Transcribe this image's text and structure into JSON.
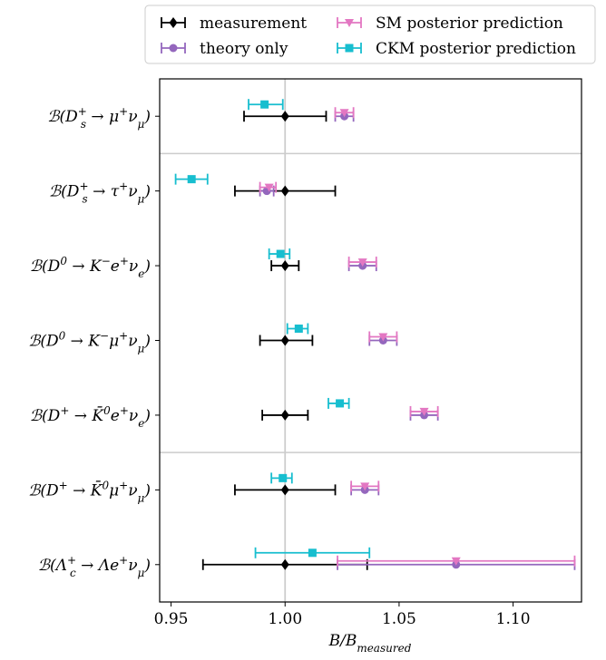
{
  "colors": {
    "measurement": "#000000",
    "theory": "#9467bd",
    "sm": "#e377c2",
    "ckm": "#17becf",
    "separator": "#cccccc",
    "refline": "#cccccc"
  },
  "legend": {
    "items": [
      {
        "key": "measurement",
        "label": "measurement",
        "marker": "diamond"
      },
      {
        "key": "theory",
        "label": "theory only",
        "marker": "circle"
      },
      {
        "key": "sm",
        "label": "SM posterior prediction",
        "marker": "triangle-down"
      },
      {
        "key": "ckm",
        "label": "CKM posterior prediction",
        "marker": "square"
      }
    ]
  },
  "chart_data": {
    "type": "scatter",
    "xlabel": "B/B_measured",
    "xlabel_main": "B/B",
    "xlabel_sub": "measured",
    "xlim": [
      0.945,
      1.13
    ],
    "xticks": [
      0.95,
      1.0,
      1.05,
      1.1
    ],
    "xtick_labels": [
      "0.95",
      "1.00",
      "1.05",
      "1.10"
    ],
    "refline_x": 1.0,
    "separators_after_rows": [
      0,
      4
    ],
    "categories": [
      "B(D_s+ → μ+ν_μ)",
      "B(D_s+ → τ+ν_μ)",
      "B(D0 → K−e+ν_e)",
      "B(D0 → K−μ+ν_μ)",
      "B(D+ → K̄0 e+ν_e)",
      "B(D+ → K̄0 μ+ν_μ)",
      "B(Λc+ → Λe+ν_μ)"
    ],
    "category_parts": [
      {
        "pre": "ℬ(D",
        "sup": "+",
        "sub": "s",
        "mid": " → μ",
        "sup2": "+",
        "mid2": "ν",
        "sub2": "μ",
        "post": ")"
      },
      {
        "pre": "ℬ(D",
        "sup": "+",
        "sub": "s",
        "mid": " → τ",
        "sup2": "+",
        "mid2": "ν",
        "sub2": "μ",
        "post": ")"
      },
      {
        "pre": "ℬ(D",
        "sup": "0",
        "sub": "",
        "mid": " → K",
        "sup2": "−",
        "mid2": "e",
        "sub2": "",
        "mid3": "+",
        "mid4": "ν",
        "sub3": "e",
        "post": ")"
      },
      {
        "pre": "ℬ(D",
        "sup": "0",
        "sub": "",
        "mid": " → K",
        "sup2": "−",
        "mid2": "μ",
        "sub2": "",
        "mid3": "+",
        "mid4": "ν",
        "sub3": "μ",
        "post": ")"
      },
      {
        "pre": "ℬ(D",
        "sup": "+",
        "sub": "",
        "mid": " → K̄",
        "sup2": "0",
        "mid2": "e",
        "sub2": "",
        "mid3": "+",
        "mid4": "ν",
        "sub3": "e",
        "post": ")"
      },
      {
        "pre": "ℬ(D",
        "sup": "+",
        "sub": "",
        "mid": " → K̄",
        "sup2": "0",
        "mid2": "μ",
        "sub2": "",
        "mid3": "+",
        "mid4": "ν",
        "sub3": "μ",
        "post": ")"
      },
      {
        "pre": "ℬ(Λ",
        "sup": "+",
        "sub": "c",
        "mid": " → Λe",
        "sup2": "+",
        "mid2": "ν",
        "sub2": "μ",
        "post": ")"
      }
    ],
    "series": [
      {
        "name": "measurement",
        "key": "measurement",
        "marker": "diamond",
        "values": [
          1.0,
          1.0,
          1.0,
          1.0,
          1.0,
          1.0,
          1.0
        ],
        "err_low": [
          0.982,
          0.978,
          0.994,
          0.989,
          0.99,
          0.978,
          0.964
        ],
        "err_high": [
          1.018,
          1.022,
          1.006,
          1.012,
          1.01,
          1.022,
          1.036
        ]
      },
      {
        "name": "theory only",
        "key": "theory",
        "marker": "circle",
        "values": [
          1.026,
          0.992,
          1.034,
          1.043,
          1.061,
          1.035,
          1.075
        ],
        "err_low": [
          1.022,
          0.989,
          1.028,
          1.037,
          1.055,
          1.029,
          1.023
        ],
        "err_high": [
          1.03,
          0.995,
          1.04,
          1.049,
          1.067,
          1.041,
          1.127
        ]
      },
      {
        "name": "SM posterior prediction",
        "key": "sm",
        "marker": "triangle-down",
        "values": [
          1.026,
          0.993,
          1.034,
          1.043,
          1.061,
          1.035,
          1.075
        ],
        "err_low": [
          1.022,
          0.989,
          1.028,
          1.037,
          1.055,
          1.029,
          1.023
        ],
        "err_high": [
          1.03,
          0.996,
          1.04,
          1.049,
          1.067,
          1.041,
          1.127
        ]
      },
      {
        "name": "CKM posterior prediction",
        "key": "ckm",
        "marker": "square",
        "values": [
          0.991,
          0.959,
          0.998,
          1.006,
          1.024,
          0.999,
          1.012
        ],
        "err_low": [
          0.984,
          0.952,
          0.993,
          1.001,
          1.019,
          0.994,
          0.987
        ],
        "err_high": [
          0.999,
          0.966,
          1.002,
          1.01,
          1.028,
          1.003,
          1.037
        ]
      }
    ]
  }
}
